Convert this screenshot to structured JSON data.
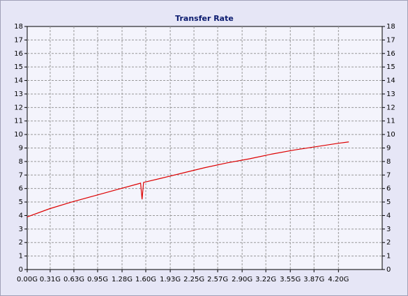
{
  "chart_data": {
    "type": "line",
    "title": "Transfer Rate",
    "x": [
      0,
      0.3,
      0.6,
      0.9,
      1.2,
      1.5,
      1.53,
      1.55,
      1.57,
      1.8,
      2.1,
      2.4,
      2.7,
      3.0,
      3.3,
      3.6,
      3.9,
      4.2,
      4.34
    ],
    "series": [
      {
        "color": "#dd0000",
        "values": [
          3.9,
          4.5,
          5.0,
          5.45,
          5.9,
          6.35,
          6.4,
          5.2,
          6.45,
          6.75,
          7.15,
          7.55,
          7.9,
          8.2,
          8.55,
          8.85,
          9.1,
          9.35,
          9.45
        ]
      }
    ],
    "xlim": [
      0,
      4.79
    ],
    "xticks": [
      {
        "value": 0,
        "label": "0.00G"
      },
      {
        "value": 0.31,
        "label": "0.31G"
      },
      {
        "value": 0.63,
        "label": "0.63G"
      },
      {
        "value": 0.95,
        "label": "0.95G"
      },
      {
        "value": 1.28,
        "label": "1.28G"
      },
      {
        "value": 1.6,
        "label": "1.60G"
      },
      {
        "value": 1.93,
        "label": "1.93G"
      },
      {
        "value": 2.25,
        "label": "2.25G"
      },
      {
        "value": 2.57,
        "label": "2.57G"
      },
      {
        "value": 2.9,
        "label": "2.90G"
      },
      {
        "value": 3.22,
        "label": "3.22G"
      },
      {
        "value": 3.55,
        "label": "3.55G"
      },
      {
        "value": 3.87,
        "label": "3.87G"
      },
      {
        "value": 4.2,
        "label": "4.20G"
      }
    ],
    "ylim": [
      0,
      18
    ],
    "yticks": [
      0,
      1,
      2,
      3,
      4,
      5,
      6,
      7,
      8,
      9,
      10,
      11,
      12,
      13,
      14,
      15,
      16,
      17,
      18
    ],
    "grid": true
  }
}
